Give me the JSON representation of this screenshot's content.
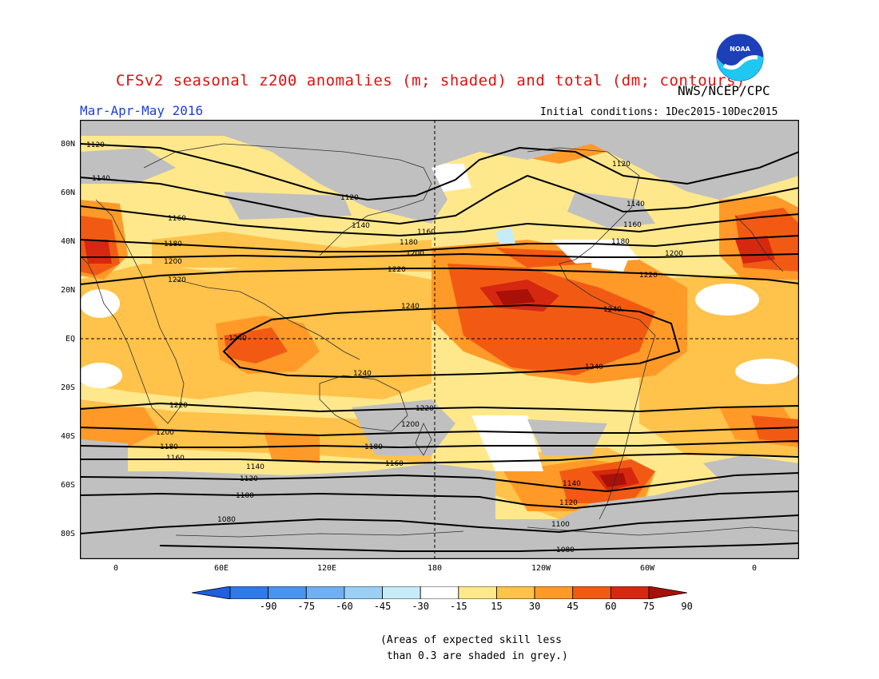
{
  "title": "CFSv2 seasonal z200 anomalies (m; shaded) and total (dm; contours)",
  "agency": "NWS/NCEP/CPC",
  "season": "Mar-Apr-May 2016",
  "initial_conditions": "Initial conditions: 1Dec2015-10Dec2015",
  "logo_text": "NOAA",
  "lat_labels": [
    "80N",
    "60N",
    "40N",
    "20N",
    "EQ",
    "20S",
    "40S",
    "60S",
    "80S"
  ],
  "lon_labels": [
    "0",
    "60E",
    "120E",
    "180",
    "120W",
    "60W",
    "0"
  ],
  "colorbar": {
    "ticks": [
      "-90",
      "-75",
      "-60",
      "-45",
      "-30",
      "-15",
      "15",
      "30",
      "45",
      "60",
      "75",
      "90"
    ],
    "colors": [
      "#1f5fe0",
      "#2f7ae8",
      "#4a93ee",
      "#6fb0f2",
      "#9ad0f6",
      "#c6ecf8",
      "#ffffff",
      "#ffe88c",
      "#ffc24a",
      "#ff9a28",
      "#f25a14",
      "#d62810",
      "#a81008"
    ]
  },
  "footnote_line1": "(Areas of expected skill less",
  "footnote_line2": " than 0.3 are shaded in grey.)",
  "colors": {
    "title": "#e01010",
    "season": "#1e40d6",
    "no_skill_grey": "#c0c0c0"
  },
  "contour_labels": [
    "1120",
    "1140",
    "1160",
    "1180",
    "1200",
    "1220",
    "1240",
    "1240",
    "1240",
    "1240",
    "1120",
    "1140",
    "1160",
    "1180",
    "1200",
    "1220",
    "1240",
    "1220",
    "1200",
    "1180",
    "1160",
    "1140",
    "1120",
    "1100",
    "1080",
    "1220",
    "1200",
    "1180",
    "1160",
    "1140",
    "1120",
    "1100",
    "1080",
    "1120",
    "1140",
    "1160",
    "1180",
    "1200",
    "1220"
  ]
}
